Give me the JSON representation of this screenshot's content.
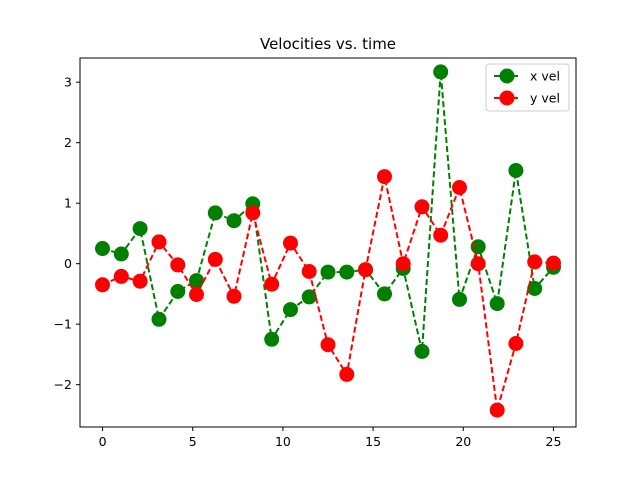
{
  "chart_data": {
    "type": "line",
    "title": "Velocities vs. time",
    "xlabel": "",
    "ylabel": "",
    "xlim": [
      -1.25,
      26.25
    ],
    "ylim": [
      -2.7,
      3.4
    ],
    "xticks": [
      0,
      5,
      10,
      15,
      20,
      25
    ],
    "yticks": [
      -2,
      -1,
      0,
      1,
      2,
      3
    ],
    "grid": false,
    "legend_position": "top-right",
    "x": [
      0,
      1.04,
      2.08,
      3.13,
      4.17,
      5.21,
      6.25,
      7.29,
      8.33,
      9.38,
      10.42,
      11.46,
      12.5,
      13.54,
      14.58,
      15.63,
      16.67,
      17.71,
      18.75,
      19.79,
      20.83,
      21.88,
      22.92,
      23.96,
      25.0
    ],
    "series": [
      {
        "name": "x vel",
        "color": "#008000",
        "linestyle": "dashed",
        "marker": "circle",
        "values": [
          0.25,
          0.16,
          0.58,
          -0.92,
          -0.46,
          -0.28,
          0.84,
          0.71,
          0.99,
          -1.25,
          -0.76,
          -0.55,
          -0.14,
          -0.14,
          -0.1,
          -0.5,
          -0.08,
          -1.45,
          3.17,
          -0.59,
          0.28,
          -0.66,
          1.54,
          -0.41,
          -0.06
        ]
      },
      {
        "name": "y vel",
        "color": "#ff0000",
        "linestyle": "dashed",
        "marker": "circle",
        "values": [
          -0.35,
          -0.21,
          -0.29,
          0.36,
          -0.02,
          -0.51,
          0.07,
          -0.54,
          0.84,
          -0.34,
          0.34,
          -0.13,
          -1.34,
          -1.83,
          -0.1,
          1.44,
          0.0,
          0.94,
          0.47,
          1.26,
          0.0,
          -2.42,
          -1.32,
          0.03,
          0.01
        ]
      }
    ]
  }
}
